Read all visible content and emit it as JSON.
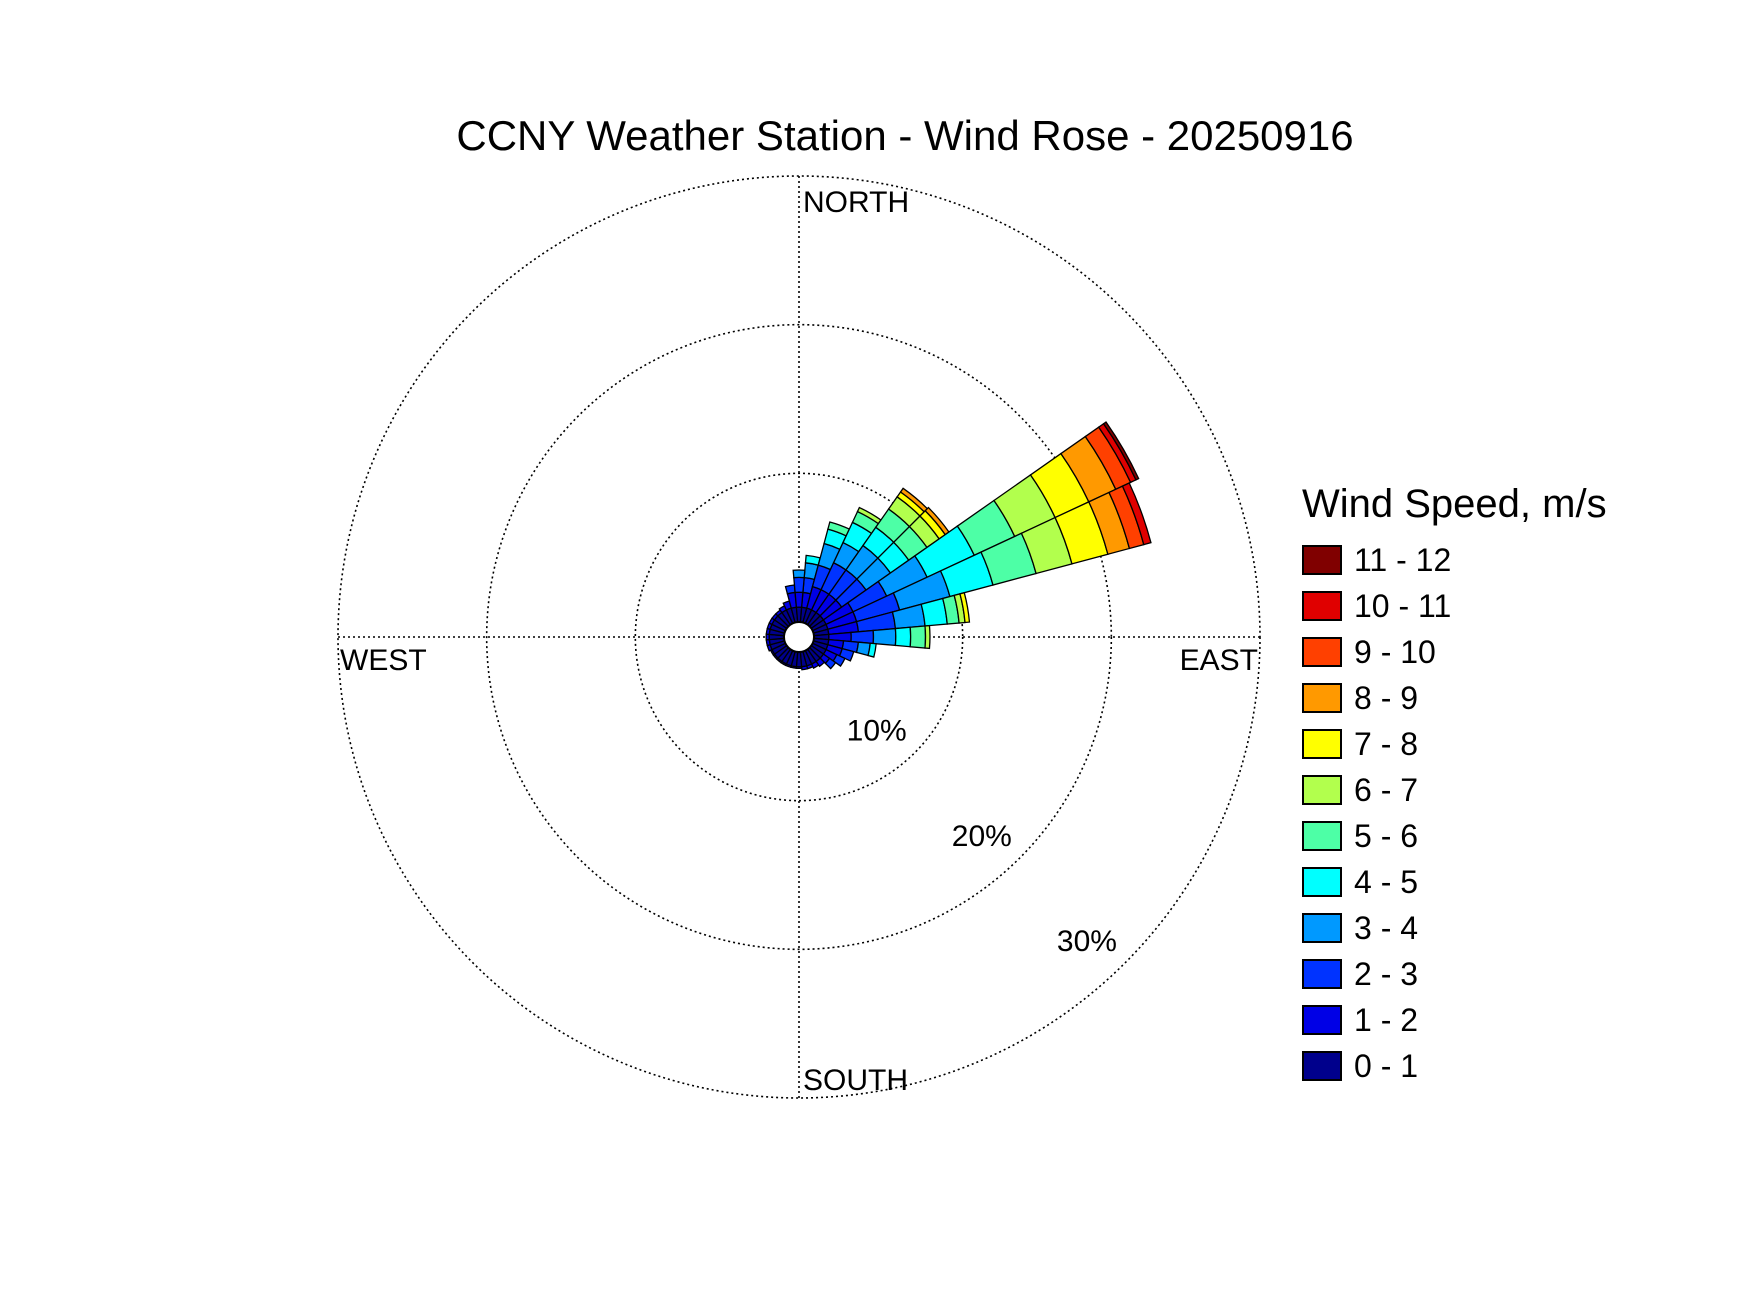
{
  "chart_data": {
    "type": "windrose",
    "title": "CCNY Weather Station - Wind Rose - 20250916",
    "directions": {
      "north": "NORTH",
      "east": "EAST",
      "south": "SOUTH",
      "west": "WEST"
    },
    "radial_labels": [
      "10%",
      "20%",
      "30%"
    ],
    "radial_max": 30,
    "grid": true,
    "legend": {
      "title": "Wind Speed, m/s",
      "placement": "right",
      "bins": [
        {
          "label": "11 - 12",
          "color": "#800000"
        },
        {
          "label": "10 - 11",
          "color": "#e00000"
        },
        {
          "label": "9 - 10",
          "color": "#ff4000"
        },
        {
          "label": "8 - 9",
          "color": "#ff9900"
        },
        {
          "label": "7 - 8",
          "color": "#ffff00"
        },
        {
          "label": "6 - 7",
          "color": "#b2ff4d"
        },
        {
          "label": "5 - 6",
          "color": "#4dffa6"
        },
        {
          "label": "4 - 5",
          "color": "#00ffff"
        },
        {
          "label": "3 - 4",
          "color": "#0099ff"
        },
        {
          "label": "2 - 3",
          "color": "#0033ff"
        },
        {
          "label": "1 - 2",
          "color": "#0000e6"
        },
        {
          "label": "0 - 1",
          "color": "#00008c"
        }
      ]
    },
    "speed_bins_order": [
      "0 - 1",
      "1 - 2",
      "2 - 3",
      "3 - 4",
      "4 - 5",
      "5 - 6",
      "6 - 7",
      "7 - 8",
      "8 - 9",
      "9 - 10",
      "10 - 11",
      "11 - 12"
    ],
    "sector_width_deg": 10,
    "sectors": [
      {
        "dir": 10,
        "cum": [
          1.0,
          2.0,
          3.0,
          4.0,
          4.5
        ]
      },
      {
        "dir": 20,
        "cum": [
          1.0,
          2.5,
          4.0,
          5.5,
          6.5,
          7.0
        ]
      },
      {
        "dir": 30,
        "cum": [
          1.0,
          2.5,
          4.5,
          6.0,
          7.5,
          8.3,
          8.6
        ]
      },
      {
        "dir": 40,
        "cum": [
          1.0,
          2.5,
          4.5,
          6.5,
          8.0,
          9.5,
          10.5,
          10.9,
          11.2
        ]
      },
      {
        "dir": 50,
        "cum": [
          1.0,
          2.5,
          4.5,
          6.5,
          8.0,
          9.5,
          10.5,
          11.0,
          11.3
        ]
      },
      {
        "dir": 60,
        "cum": [
          1.0,
          3.0,
          5.5,
          8.5,
          12.0,
          15.0,
          18.0,
          20.5,
          22.5,
          23.6,
          24.0,
          24.2
        ]
      },
      {
        "dir": 70,
        "cum": [
          1.0,
          3.0,
          6.0,
          9.5,
          12.5,
          15.5,
          18.0,
          20.5,
          22.0,
          23.0,
          23.5
        ]
      },
      {
        "dir": 80,
        "cum": [
          1.0,
          3.0,
          5.5,
          7.5,
          9.0,
          9.8,
          10.2,
          10.5
        ]
      },
      {
        "dir": 90,
        "cum": [
          1.0,
          2.5,
          4.0,
          5.5,
          6.5,
          7.5,
          7.8
        ]
      },
      {
        "dir": 100,
        "cum": [
          1.0,
          2.0,
          3.0,
          3.8,
          4.2
        ]
      },
      {
        "dir": 110,
        "cum": [
          1.0,
          2.0,
          2.8
        ]
      },
      {
        "dir": 120,
        "cum": [
          1.0,
          1.8,
          2.4
        ]
      },
      {
        "dir": 130,
        "cum": [
          1.0,
          1.5,
          2.0
        ]
      },
      {
        "dir": 140,
        "cum": [
          1.0,
          1.4
        ]
      },
      {
        "dir": 150,
        "cum": [
          1.0,
          1.3
        ]
      },
      {
        "dir": 160,
        "cum": [
          1.0,
          1.2
        ]
      },
      {
        "dir": 170,
        "cum": [
          1.0,
          1.2
        ]
      },
      {
        "dir": 180,
        "cum": [
          1.0,
          1.1
        ]
      },
      {
        "dir": 190,
        "cum": [
          1.0,
          1.1
        ]
      },
      {
        "dir": 200,
        "cum": [
          1.0,
          1.1
        ]
      },
      {
        "dir": 210,
        "cum": [
          1.0,
          1.1
        ]
      },
      {
        "dir": 220,
        "cum": [
          1.0,
          1.1
        ]
      },
      {
        "dir": 230,
        "cum": [
          1.0,
          1.1
        ]
      },
      {
        "dir": 240,
        "cum": [
          1.0,
          1.1
        ]
      },
      {
        "dir": 250,
        "cum": [
          1.0,
          1.2
        ]
      },
      {
        "dir": 260,
        "cum": [
          1.0,
          1.2
        ]
      },
      {
        "dir": 270,
        "cum": [
          1.0,
          1.2
        ]
      },
      {
        "dir": 280,
        "cum": [
          1.0,
          1.2
        ]
      },
      {
        "dir": 290,
        "cum": [
          1.0,
          1.2
        ]
      },
      {
        "dir": 300,
        "cum": [
          1.0,
          1.2
        ]
      },
      {
        "dir": 310,
        "cum": [
          1.0,
          1.2
        ]
      },
      {
        "dir": 320,
        "cum": [
          1.0,
          1.2
        ]
      },
      {
        "dir": 330,
        "cum": [
          1.0,
          1.3
        ]
      },
      {
        "dir": 340,
        "cum": [
          1.0,
          1.5
        ]
      },
      {
        "dir": 350,
        "cum": [
          1.0,
          2.0,
          2.5
        ]
      },
      {
        "dir": 360,
        "cum": [
          1.0,
          2.0,
          3.0,
          3.5
        ]
      }
    ]
  }
}
